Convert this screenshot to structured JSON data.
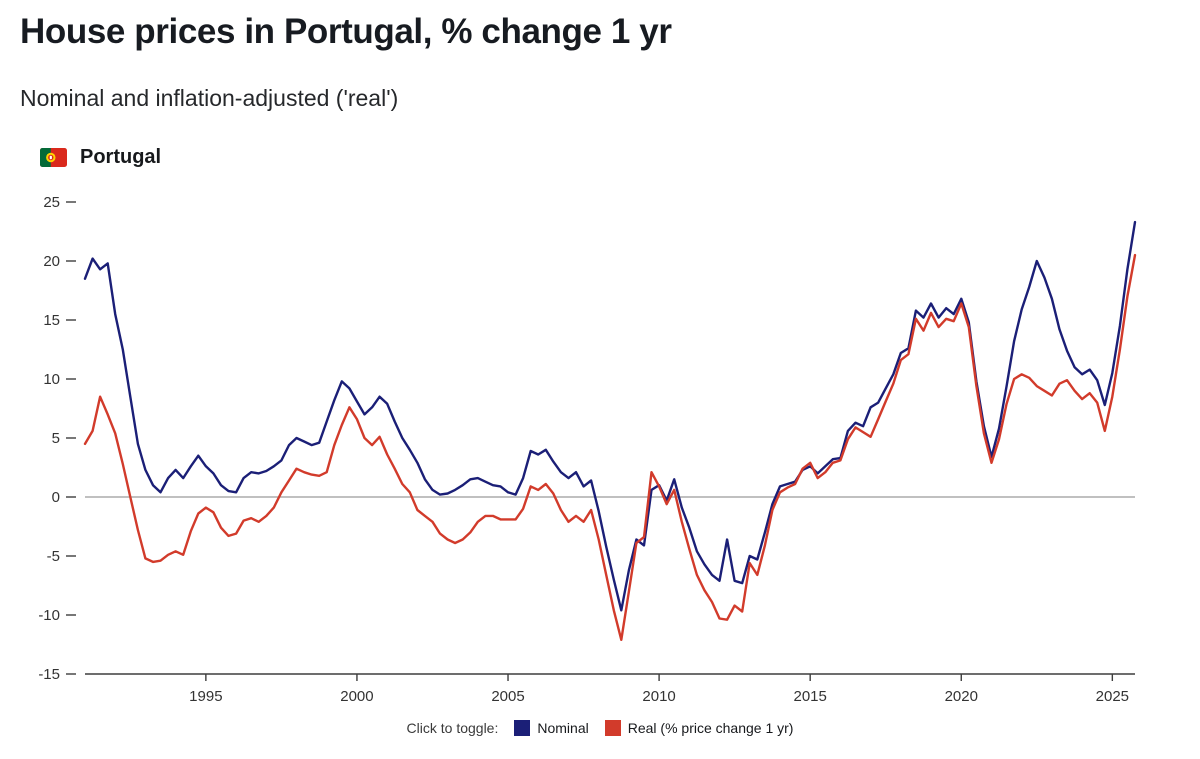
{
  "header": {
    "title": "House prices in Portugal, % change 1 yr",
    "subtitle": "Nominal and inflation-adjusted ('real')",
    "country": "Portugal"
  },
  "legend": {
    "instruction": "Click to toggle:",
    "items": [
      {
        "label": "Nominal",
        "color": "#1b1f77"
      },
      {
        "label": "Real (% price change 1 yr)",
        "color": "#d23b2b"
      }
    ]
  },
  "chart_data": {
    "type": "line",
    "title": "House prices in Portugal, % change 1 yr",
    "subtitle": "Nominal and inflation-adjusted ('real')",
    "xlabel": "",
    "ylabel": "% price change 1 yr",
    "xlim": [
      1991,
      2025.75
    ],
    "ylim": [
      -15,
      25
    ],
    "yticks": [
      -15,
      -10,
      -5,
      0,
      5,
      10,
      15,
      20,
      25
    ],
    "xticks": [
      1995,
      2000,
      2005,
      2010,
      2015,
      2020,
      2025
    ],
    "grid": false,
    "zero_line": true,
    "legend_position": "bottom",
    "x_start": 1991.0,
    "x_step": 0.25,
    "x_unit": "year (quarterly)",
    "colors": {
      "axis": "#3d3d3d",
      "tick_label": "#333333",
      "zero_line": "#9b9b9b"
    },
    "series": [
      {
        "name": "Nominal",
        "color": "#1b1f77",
        "values": [
          18.5,
          20.2,
          19.3,
          19.8,
          15.5,
          12.5,
          8.5,
          4.5,
          2.3,
          1.0,
          0.4,
          1.6,
          2.3,
          1.6,
          2.6,
          3.5,
          2.6,
          2.0,
          1.0,
          0.5,
          0.4,
          1.6,
          2.1,
          2.0,
          2.2,
          2.6,
          3.1,
          4.4,
          5.0,
          4.7,
          4.4,
          4.6,
          6.4,
          8.2,
          9.8,
          9.2,
          8.1,
          7.0,
          7.6,
          8.5,
          7.9,
          6.4,
          5.0,
          4.0,
          2.9,
          1.5,
          0.6,
          0.2,
          0.3,
          0.6,
          1.0,
          1.5,
          1.6,
          1.3,
          1.0,
          0.9,
          0.4,
          0.2,
          1.6,
          3.9,
          3.6,
          4.0,
          3.0,
          2.1,
          1.6,
          2.1,
          0.9,
          1.4,
          -1.2,
          -4.2,
          -7.0,
          -9.6,
          -6.2,
          -3.6,
          -4.1,
          0.6,
          1.0,
          -0.3,
          1.5,
          -0.9,
          -2.6,
          -4.6,
          -5.7,
          -6.6,
          -7.1,
          -3.6,
          -7.1,
          -7.3,
          -5.0,
          -5.3,
          -3.0,
          -0.6,
          0.9,
          1.1,
          1.3,
          2.3,
          2.6,
          2.0,
          2.6,
          3.2,
          3.3,
          5.6,
          6.3,
          6.0,
          7.6,
          8.0,
          9.2,
          10.4,
          12.2,
          12.6,
          15.8,
          15.2,
          16.4,
          15.2,
          16.0,
          15.5,
          16.8,
          14.8,
          9.8,
          6.0,
          3.4,
          5.8,
          9.4,
          13.2,
          15.9,
          17.8,
          20.0,
          18.6,
          16.8,
          14.2,
          12.4,
          11.0,
          10.4,
          10.8,
          9.9,
          7.8,
          10.5,
          14.5,
          19.3,
          23.3
        ]
      },
      {
        "name": "Real",
        "color": "#d23b2b",
        "values": [
          4.5,
          5.6,
          8.5,
          7.0,
          5.4,
          2.8,
          0.0,
          -2.8,
          -5.2,
          -5.5,
          -5.4,
          -4.9,
          -4.6,
          -4.9,
          -2.9,
          -1.4,
          -0.9,
          -1.3,
          -2.6,
          -3.3,
          -3.1,
          -2.0,
          -1.8,
          -2.1,
          -1.6,
          -0.9,
          0.4,
          1.4,
          2.4,
          2.1,
          1.9,
          1.8,
          2.1,
          4.4,
          6.1,
          7.6,
          6.6,
          5.0,
          4.4,
          5.1,
          3.6,
          2.4,
          1.1,
          0.4,
          -1.1,
          -1.6,
          -2.1,
          -3.1,
          -3.6,
          -3.9,
          -3.6,
          -3.0,
          -2.1,
          -1.6,
          -1.6,
          -1.9,
          -1.9,
          -1.9,
          -1.0,
          0.9,
          0.6,
          1.1,
          0.3,
          -1.1,
          -2.1,
          -1.6,
          -2.1,
          -1.1,
          -3.6,
          -6.6,
          -9.6,
          -12.1,
          -8.0,
          -3.9,
          -3.4,
          2.1,
          0.9,
          -0.6,
          0.6,
          -2.1,
          -4.4,
          -6.6,
          -7.9,
          -8.9,
          -10.3,
          -10.4,
          -9.2,
          -9.7,
          -5.6,
          -6.6,
          -4.1,
          -1.1,
          0.4,
          0.8,
          1.1,
          2.4,
          2.9,
          1.6,
          2.1,
          2.9,
          3.1,
          4.9,
          5.9,
          5.5,
          5.1,
          6.6,
          8.1,
          9.6,
          11.6,
          12.1,
          15.1,
          14.1,
          15.6,
          14.4,
          15.1,
          14.9,
          16.4,
          14.4,
          9.4,
          5.4,
          2.9,
          4.9,
          7.9,
          10.0,
          10.4,
          10.1,
          9.4,
          9.0,
          8.6,
          9.6,
          9.9,
          9.0,
          8.3,
          8.8,
          8.0,
          5.6,
          8.5,
          12.5,
          17.0,
          20.5
        ]
      }
    ]
  }
}
